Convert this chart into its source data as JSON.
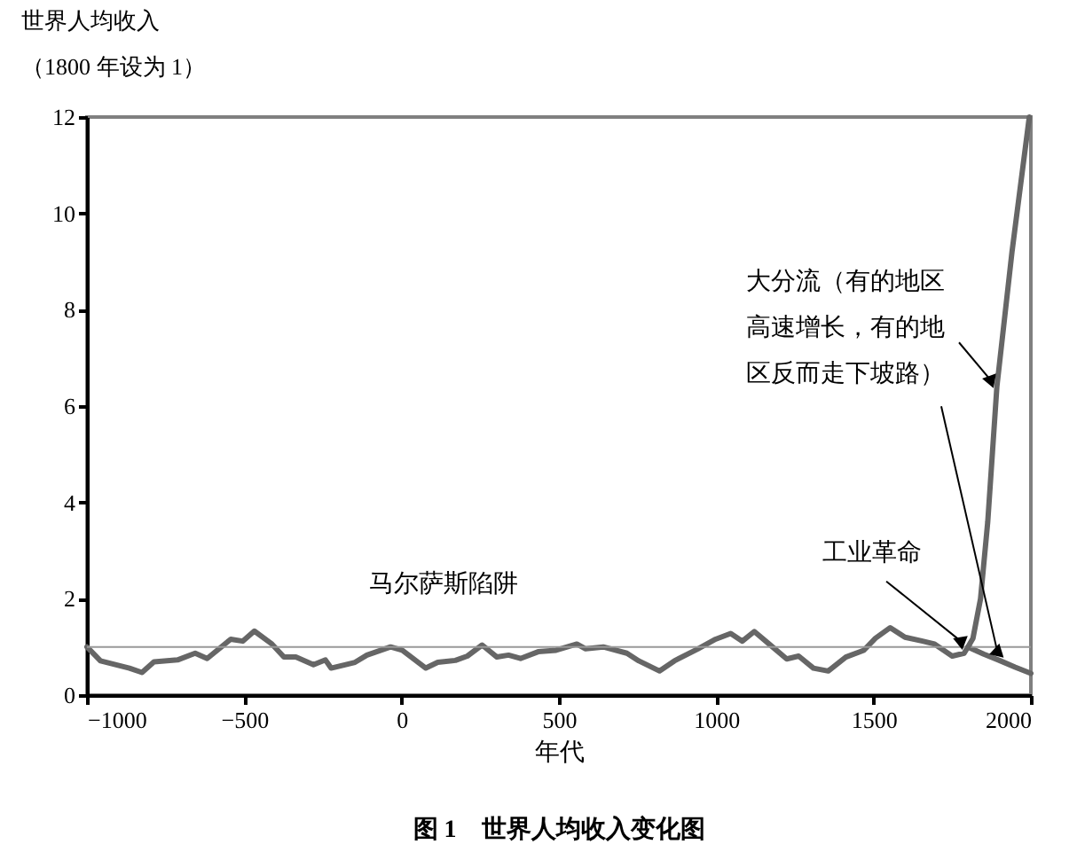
{
  "chart_data": {
    "type": "line",
    "title": "图 1　世界人均收入变化图",
    "xlabel": "年代",
    "ylabel": "世界人均收入（1800 年设为 1）",
    "xlim": [
      -1000,
      2000
    ],
    "xticks": [
      {
        "value": -1000,
        "label": "−1000"
      },
      {
        "value": -500,
        "label": "−500"
      },
      0,
      500,
      1000,
      1500,
      2000
    ],
    "ylim": [
      0,
      12
    ],
    "yticks": [
      0,
      2,
      4,
      6,
      8,
      10,
      12
    ],
    "grid": false,
    "marker": "none",
    "line_style": "solid",
    "ref_lines": [
      {
        "axis": "y",
        "value": 1,
        "color": "#999999"
      }
    ],
    "annotations": [
      "马尔萨斯陷阱",
      {
        "text": "工业革命",
        "x": 1800,
        "y": 1.0
      },
      {
        "text": "大分流（有的地区高速增长，有的地区反而走下坡路）",
        "x": 1890,
        "y": 6.4
      }
    ],
    "series": [
      {
        "color": "#666666",
        "x": [
          -1000,
          -957,
          -865,
          -825,
          -787,
          -712,
          -656,
          -618,
          -543,
          -505,
          -468,
          -412,
          -374,
          -336,
          -280,
          -242,
          -224,
          -148,
          -110,
          -35,
          2,
          77,
          115,
          171,
          209,
          256,
          303,
          340,
          378,
          434,
          491,
          557,
          585,
          641,
          716,
          754,
          820,
          867,
          942,
          998,
          1046,
          1083,
          1121,
          1168,
          1224,
          1262,
          1309,
          1356,
          1412,
          1469,
          1506,
          1553,
          1600,
          1656,
          1694,
          1750,
          1788,
          1800,
          1850,
          1900,
          1950,
          2000
        ],
        "values": [
          1.0,
          0.71,
          0.56,
          0.47,
          0.69,
          0.73,
          0.87,
          0.76,
          1.16,
          1.12,
          1.33,
          1.06,
          0.79,
          0.79,
          0.63,
          0.73,
          0.56,
          0.68,
          0.83,
          1.0,
          0.93,
          0.56,
          0.68,
          0.72,
          0.81,
          1.04,
          0.79,
          0.83,
          0.76,
          0.9,
          0.93,
          1.06,
          0.96,
          1.0,
          0.87,
          0.71,
          0.5,
          0.71,
          0.96,
          1.16,
          1.28,
          1.12,
          1.32,
          1.06,
          0.75,
          0.81,
          0.56,
          0.5,
          0.79,
          0.93,
          1.18,
          1.4,
          1.2,
          1.12,
          1.06,
          0.81,
          0.87,
          1.0,
          0.85,
          0.72,
          0.58,
          0.45
        ]
      },
      {
        "color": "#666666",
        "x": [
          1800,
          1816,
          1840,
          1863,
          1892,
          1940,
          1995
        ],
        "values": [
          1.0,
          1.18,
          2.0,
          3.6,
          6.4,
          9.2,
          12
        ]
      }
    ]
  }
}
